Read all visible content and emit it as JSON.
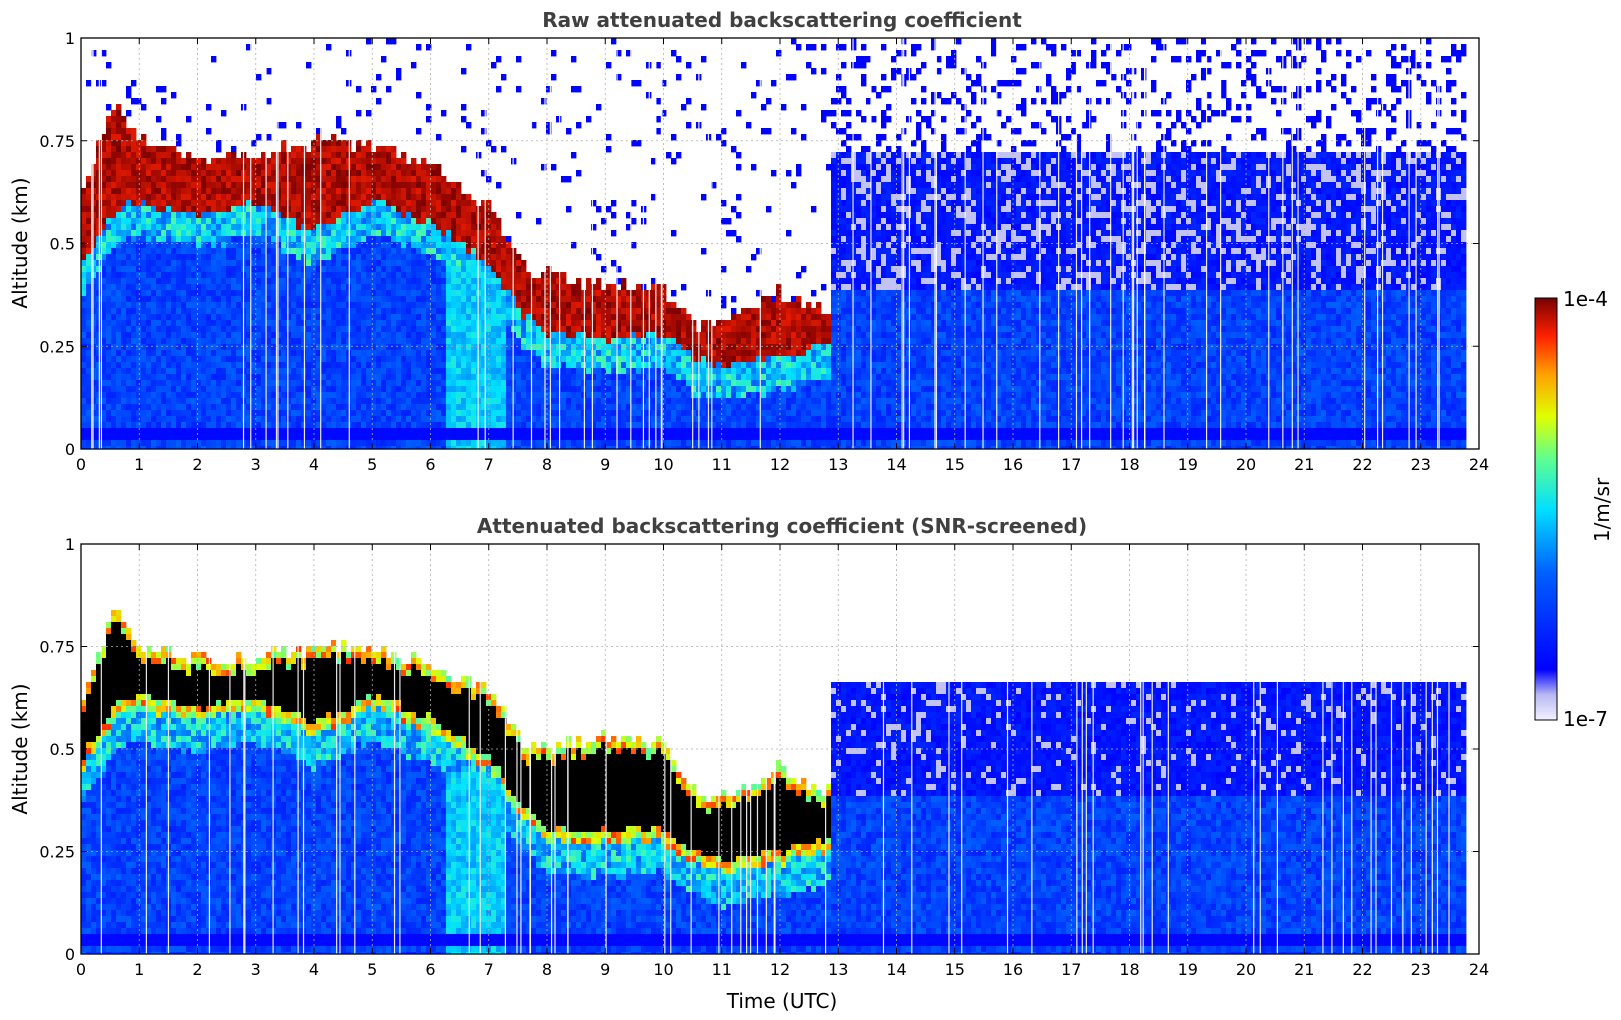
{
  "chart_data": [
    {
      "type": "heatmap",
      "title": "Raw attenuated backscattering coefficient",
      "xlabel": "",
      "ylabel": "Altitude (km)",
      "xlim": [
        0,
        24
      ],
      "ylim": [
        0,
        1
      ],
      "xticks": [
        "0",
        "1",
        "2",
        "3",
        "4",
        "5",
        "6",
        "7",
        "8",
        "9",
        "10",
        "11",
        "12",
        "13",
        "14",
        "15",
        "16",
        "17",
        "18",
        "19",
        "20",
        "21",
        "22",
        "23",
        "24"
      ],
      "yticks": [
        "0",
        "0.25",
        "0.5",
        "0.75",
        "1"
      ],
      "grid": true,
      "masked": false,
      "cloud_top_km": [
        [
          0,
          0.62
        ],
        [
          0.6,
          0.84
        ],
        [
          1,
          0.75
        ],
        [
          2,
          0.7
        ],
        [
          3,
          0.72
        ],
        [
          4,
          0.75
        ],
        [
          5,
          0.74
        ],
        [
          6,
          0.68
        ],
        [
          7,
          0.6
        ],
        [
          7.6,
          0.45
        ],
        [
          8,
          0.42
        ],
        [
          9,
          0.4
        ],
        [
          10,
          0.38
        ],
        [
          10.5,
          0.3
        ],
        [
          11,
          0.31
        ],
        [
          12,
          0.38
        ],
        [
          12.7,
          0.35
        ]
      ],
      "cloud_base_km": [
        [
          0,
          0.45
        ],
        [
          0.6,
          0.58
        ],
        [
          1,
          0.6
        ],
        [
          2,
          0.57
        ],
        [
          3,
          0.6
        ],
        [
          4,
          0.53
        ],
        [
          5,
          0.6
        ],
        [
          6,
          0.55
        ],
        [
          7,
          0.45
        ],
        [
          7.6,
          0.33
        ],
        [
          8,
          0.28
        ],
        [
          9,
          0.27
        ],
        [
          10,
          0.28
        ],
        [
          10.5,
          0.22
        ],
        [
          11,
          0.2
        ],
        [
          12,
          0.22
        ],
        [
          12.7,
          0.25
        ]
      ],
      "noise_top_km": 0.72
    },
    {
      "type": "heatmap",
      "title": "Attenuated backscattering coefficient (SNR-screened)",
      "xlabel": "Time (UTC)",
      "ylabel": "Altitude (km)",
      "xlim": [
        0,
        24
      ],
      "ylim": [
        0,
        1
      ],
      "xticks": [
        "0",
        "1",
        "2",
        "3",
        "4",
        "5",
        "6",
        "7",
        "8",
        "9",
        "10",
        "11",
        "12",
        "13",
        "14",
        "15",
        "16",
        "17",
        "18",
        "19",
        "20",
        "21",
        "22",
        "23",
        "24"
      ],
      "yticks": [
        "0",
        "0.25",
        "0.5",
        "0.75",
        "1"
      ],
      "grid": true,
      "masked": true,
      "cloud_top_km": [
        [
          0,
          0.62
        ],
        [
          0.6,
          0.85
        ],
        [
          1,
          0.75
        ],
        [
          2,
          0.72
        ],
        [
          3,
          0.72
        ],
        [
          4,
          0.75
        ],
        [
          5,
          0.75
        ],
        [
          6,
          0.7
        ],
        [
          7,
          0.65
        ],
        [
          7.6,
          0.5
        ],
        [
          8,
          0.5
        ],
        [
          9,
          0.53
        ],
        [
          10,
          0.52
        ],
        [
          10.5,
          0.4
        ],
        [
          11,
          0.38
        ],
        [
          12,
          0.45
        ],
        [
          12.7,
          0.4
        ]
      ],
      "cloud_base_km": [
        [
          0,
          0.45
        ],
        [
          0.6,
          0.58
        ],
        [
          1,
          0.6
        ],
        [
          2,
          0.57
        ],
        [
          3,
          0.6
        ],
        [
          4,
          0.53
        ],
        [
          5,
          0.6
        ],
        [
          6,
          0.55
        ],
        [
          7,
          0.45
        ],
        [
          7.6,
          0.33
        ],
        [
          8,
          0.28
        ],
        [
          9,
          0.27
        ],
        [
          10,
          0.28
        ],
        [
          10.5,
          0.22
        ],
        [
          11,
          0.2
        ],
        [
          12,
          0.22
        ],
        [
          12.7,
          0.25
        ]
      ],
      "noise_top_km": 0.66
    }
  ],
  "colorbar": {
    "max_label": "1e-4",
    "min_label": "1e-7",
    "unit": "1/m/sr",
    "colormap": "jet"
  }
}
